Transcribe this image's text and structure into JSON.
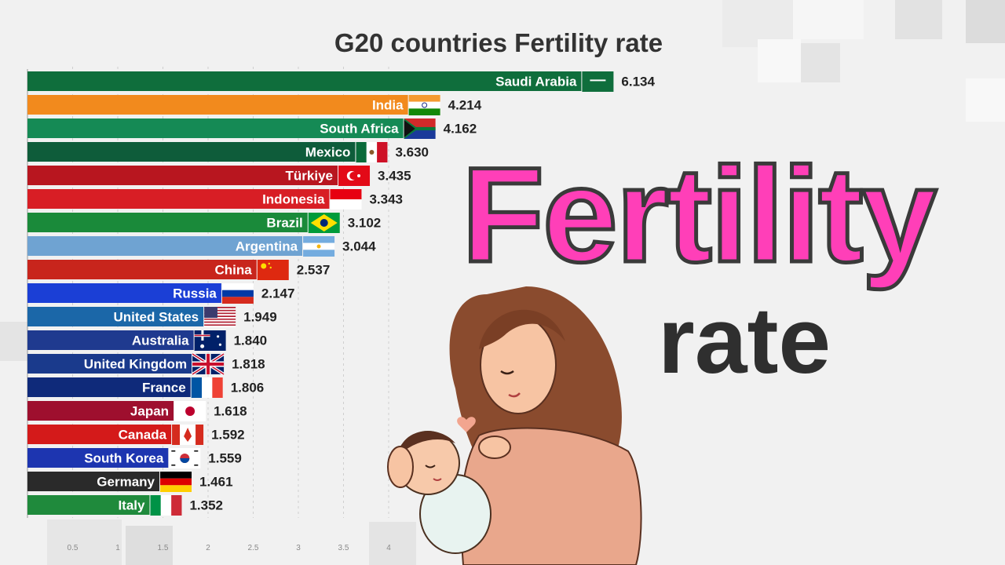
{
  "headline": {
    "big_word": "Fertility",
    "sub_word": "rate"
  },
  "colors": {
    "headline_pink": "#ff3fb8",
    "headline_dark": "#2f2f2f",
    "background": "#f1f1f1"
  },
  "chart_data": {
    "type": "bar",
    "orientation": "horizontal",
    "title": "G20  countries Fertility rate",
    "xlim": [
      0,
      6.4
    ],
    "xticks": [
      "0.5",
      "1",
      "1.5",
      "2",
      "2.5",
      "3",
      "3.5",
      "4"
    ],
    "xtick_values": [
      0.5,
      1,
      1.5,
      2,
      2.5,
      3,
      3.5,
      4
    ],
    "grid": true,
    "categories": [
      "Saudi Arabia",
      "India",
      "South Africa",
      "Mexico",
      "Türkiye",
      "Indonesia",
      "Brazil",
      "Argentina",
      "China",
      "Russia",
      "United States",
      "Australia",
      "United Kingdom",
      "France",
      "Japan",
      "Canada",
      "South Korea",
      "Germany",
      "Italy"
    ],
    "values": [
      6.134,
      4.214,
      4.162,
      3.63,
      3.435,
      3.343,
      3.102,
      3.044,
      2.537,
      2.147,
      1.949,
      1.84,
      1.818,
      1.806,
      1.618,
      1.592,
      1.559,
      1.461,
      1.352
    ],
    "value_labels": [
      "6.134",
      "4.214",
      "4.162",
      "3.630",
      "3.435",
      "3.343",
      "3.102",
      "3.044",
      "2.537",
      "2.147",
      "1.949",
      "1.840",
      "1.818",
      "1.806",
      "1.618",
      "1.592",
      "1.559",
      "1.461",
      "1.352"
    ],
    "bar_colors": [
      "#0f6e3c",
      "#f28a1d",
      "#158a55",
      "#0e5c3a",
      "#b8161f",
      "#d81e25",
      "#1a8a3a",
      "#6fa3d2",
      "#c8251c",
      "#1b3fd6",
      "#1b67a8",
      "#1f3a8f",
      "#1a3a8c",
      "#0f2a7a",
      "#9e0f2e",
      "#d41a1a",
      "#1d35b0",
      "#2a2a2a",
      "#1f8a3c"
    ],
    "flags": [
      "saudi-flag",
      "india-flag",
      "south-africa-flag",
      "mexico-flag",
      "turkey-flag",
      "indonesia-flag",
      "brazil-flag",
      "argentina-flag",
      "china-flag",
      "russia-flag",
      "usa-flag",
      "australia-flag",
      "uk-flag",
      "france-flag",
      "japan-flag",
      "canada-flag",
      "korea-flag",
      "germany-flag",
      "italy-flag"
    ]
  }
}
